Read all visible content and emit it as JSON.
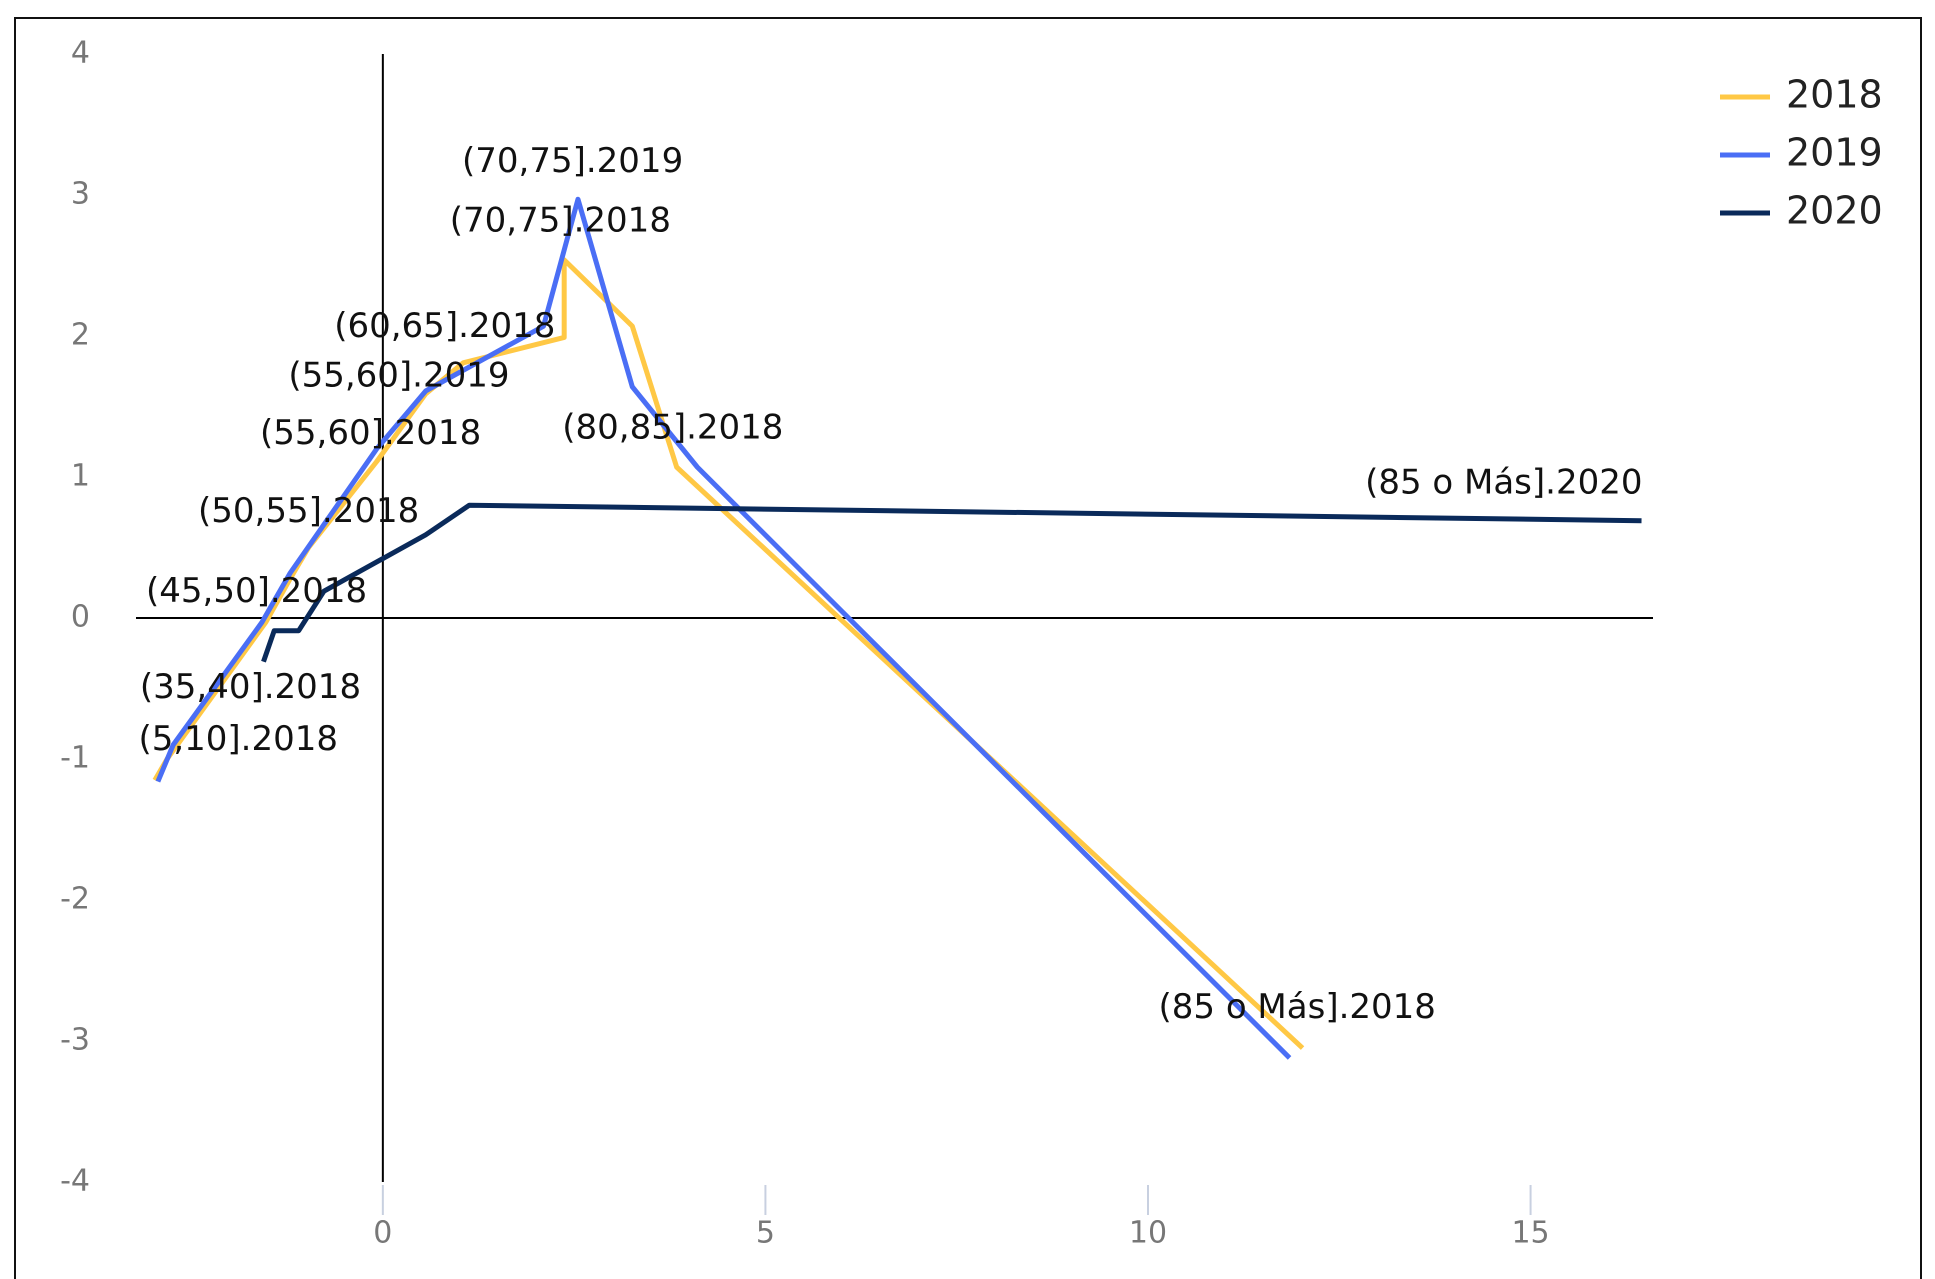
{
  "chart_data": {
    "type": "line",
    "xlim": [
      -3.2,
      16.6
    ],
    "ylim": [
      -4,
      4
    ],
    "xticks": [
      0,
      5,
      10,
      15
    ],
    "yticks": [
      -4,
      -3,
      -2,
      -1,
      0,
      1,
      2,
      3,
      4
    ],
    "legend": "top-right",
    "series": [
      {
        "name": "2018",
        "color": "#ffc845",
        "x": [
          -2.98,
          -2.82,
          -1.53,
          -1.21,
          -0.97,
          -0.08,
          0.56,
          1.05,
          2.37,
          2.37,
          3.26,
          3.84,
          12.02
        ],
        "values": [
          -1.15,
          -1.0,
          -0.03,
          0.28,
          0.5,
          1.11,
          1.59,
          1.81,
          1.99,
          2.54,
          2.07,
          1.07,
          -3.05
        ]
      },
      {
        "name": "2019",
        "color": "#4a6ef5",
        "x": [
          -2.94,
          -2.74,
          -1.58,
          -1.21,
          -0.08,
          0.56,
          2.1,
          2.55,
          3.26,
          4.11,
          11.85
        ],
        "values": [
          -1.16,
          -0.9,
          -0.03,
          0.32,
          1.2,
          1.61,
          2.07,
          2.97,
          1.64,
          1.07,
          -3.12
        ]
      },
      {
        "name": "2020",
        "color": "#0a2a5a",
        "x": [
          -1.56,
          -1.42,
          -1.1,
          -0.77,
          0.56,
          1.13,
          16.45
        ],
        "values": [
          -0.31,
          -0.09,
          -0.09,
          0.19,
          0.59,
          0.8,
          0.69
        ]
      }
    ],
    "annotations": [
      {
        "text": "(70,75].2019",
        "x": 2.48,
        "y": 3.23
      },
      {
        "text": "(70,75].2018",
        "x": 2.32,
        "y": 2.81
      },
      {
        "text": "(60,65].2018",
        "x": 0.81,
        "y": 2.06
      },
      {
        "text": "(55,60].2019",
        "x": 0.21,
        "y": 1.71
      },
      {
        "text": "(55,60].2018",
        "x": -0.16,
        "y": 1.3
      },
      {
        "text": "(80,85].2018",
        "x": 3.79,
        "y": 1.34
      },
      {
        "text": "(50,55].2018",
        "x": -0.97,
        "y": 0.75
      },
      {
        "text": "(45,50].2018",
        "x": -1.65,
        "y": 0.18
      },
      {
        "text": "(35,40].2018",
        "x": -1.73,
        "y": -0.5
      },
      {
        "text": "(5,10].2018",
        "x": -1.89,
        "y": -0.87
      },
      {
        "text": "(85 o Más].2020",
        "x": 14.65,
        "y": 0.95
      },
      {
        "text": "(85 o Más].2018",
        "x": 11.95,
        "y": -2.77
      }
    ]
  }
}
